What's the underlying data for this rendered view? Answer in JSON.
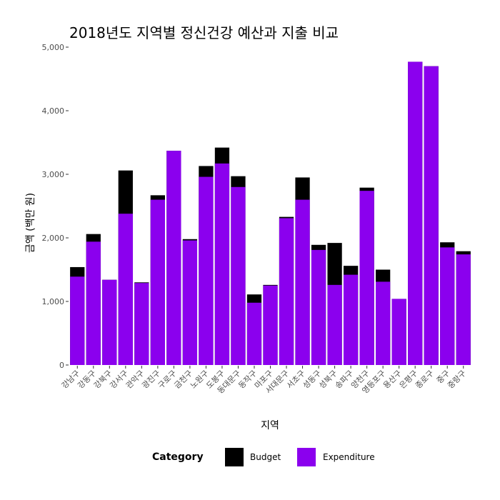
{
  "chart_data": {
    "type": "bar",
    "title": "2018년도 지역별 정신건강 예산과 지출 비교",
    "xlabel": "지역",
    "ylabel": "금액 (백만 원)",
    "ylim": [
      0,
      5000
    ],
    "yticks": [
      "0",
      "1,000",
      "2,000",
      "3,000",
      "4,000",
      "5,000"
    ],
    "categories": [
      "강남구",
      "강동구",
      "강북구",
      "강서구",
      "관악구",
      "광진구",
      "구로구",
      "금천구",
      "노원구",
      "도봉구",
      "동대문구",
      "동작구",
      "마포구",
      "서대문구",
      "서초구",
      "성동구",
      "성북구",
      "송파구",
      "양천구",
      "영등포구",
      "용산구",
      "은평구",
      "종로구",
      "중구",
      "중랑구"
    ],
    "series": [
      {
        "name": "Budget",
        "color": "#000000",
        "values": [
          1540,
          2060,
          1340,
          3060,
          1300,
          2670,
          3370,
          1980,
          3130,
          3420,
          2970,
          1110,
          1260,
          2330,
          2950,
          1890,
          1920,
          1560,
          2790,
          1500,
          1040,
          4770,
          4700,
          1930,
          1790
        ]
      },
      {
        "name": "Expenditure",
        "color": "#8B00EE",
        "values": [
          1390,
          1940,
          1340,
          2380,
          1290,
          2600,
          3370,
          1960,
          2960,
          3170,
          2800,
          980,
          1250,
          2310,
          2600,
          1810,
          1260,
          1420,
          2740,
          1310,
          1040,
          4770,
          4700,
          1850,
          1740
        ]
      }
    ],
    "legend": {
      "title": "Category",
      "position": "bottom"
    },
    "grid": false
  }
}
